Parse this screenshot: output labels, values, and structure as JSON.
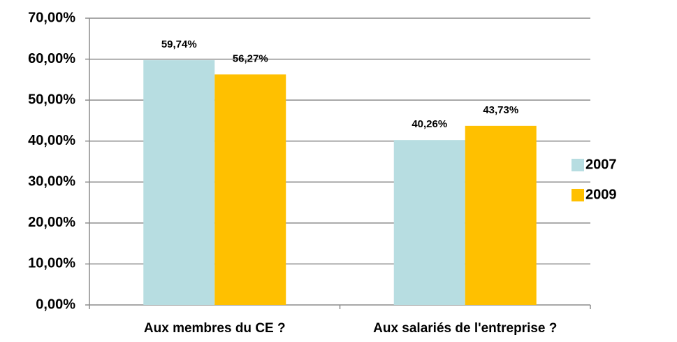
{
  "chart_data": {
    "type": "bar",
    "categories": [
      "Aux membres du CE ?",
      "Aux salariés de l'entreprise ?"
    ],
    "series": [
      {
        "name": "2007",
        "color": "#b7dde1",
        "values": [
          59.74,
          40.26
        ],
        "value_labels": [
          "59,74%",
          "40,26%"
        ]
      },
      {
        "name": "2009",
        "color": "#ffc000",
        "values": [
          56.27,
          43.73
        ],
        "value_labels": [
          "56,27%",
          "43,73%"
        ]
      }
    ],
    "ylim": [
      0,
      70
    ],
    "yticks": [
      {
        "value": 0,
        "label": "0,00%"
      },
      {
        "value": 10,
        "label": "10,00%"
      },
      {
        "value": 20,
        "label": "20,00%"
      },
      {
        "value": 30,
        "label": "30,00%"
      },
      {
        "value": 40,
        "label": "40,00%"
      },
      {
        "value": 50,
        "label": "50,00%"
      },
      {
        "value": 60,
        "label": "60,00%"
      },
      {
        "value": 70,
        "label": "70,00%"
      }
    ],
    "grid": true,
    "legend": "right"
  }
}
